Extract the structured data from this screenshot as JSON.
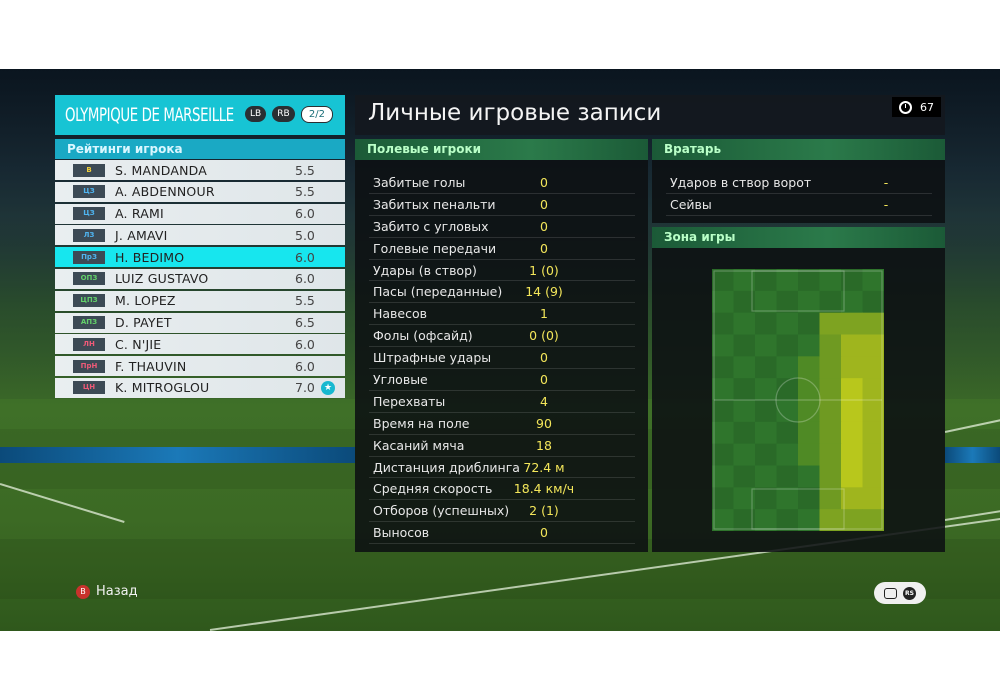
{
  "team": {
    "name": "OLYMPIQUE DE MARSEILLE",
    "btn_lb": "LB",
    "btn_rb": "RB",
    "page": "2/2"
  },
  "ratings_title": "Рейтинги игрока",
  "players": [
    {
      "pos": "В",
      "name": "S. MANDANDA",
      "rating": "5.5",
      "pos_color": "#f2d13a"
    },
    {
      "pos": "ЦЗ",
      "name": "A. ABDENNOUR",
      "rating": "5.5",
      "pos_color": "#4fb4f0"
    },
    {
      "pos": "ЦЗ",
      "name": "A. RAMI",
      "rating": "6.0",
      "pos_color": "#4fb4f0"
    },
    {
      "pos": "ЛЗ",
      "name": "J. AMAVI",
      "rating": "5.0",
      "pos_color": "#4fb4f0"
    },
    {
      "pos": "ПрЗ",
      "name": "H. BEDIMO",
      "rating": "6.0",
      "pos_color": "#4fb4f0"
    },
    {
      "pos": "ОПЗ",
      "name": "LUIZ GUSTAVO",
      "rating": "6.0",
      "pos_color": "#63d16a"
    },
    {
      "pos": "ЦПЗ",
      "name": "M. LOPEZ",
      "rating": "5.5",
      "pos_color": "#63d16a"
    },
    {
      "pos": "АПЗ",
      "name": "D. PAYET",
      "rating": "6.5",
      "pos_color": "#63d16a"
    },
    {
      "pos": "ЛН",
      "name": "C. N'JIE",
      "rating": "6.0",
      "pos_color": "#ef5a78"
    },
    {
      "pos": "ПрН",
      "name": "F. THAUVIN",
      "rating": "6.0",
      "pos_color": "#ef5a78"
    },
    {
      "pos": "ЦН",
      "name": "K. MITROGLOU",
      "rating": "7.0",
      "pos_color": "#ef5a78"
    }
  ],
  "records_title": "Личные игровые записи",
  "timer": "67",
  "field_title": "Полевые игроки",
  "field_stats": [
    {
      "label": "Забитые голы",
      "value": "0"
    },
    {
      "label": "Забитых пенальти",
      "value": "0"
    },
    {
      "label": "Забито с угловых",
      "value": "0"
    },
    {
      "label": "Голевые передачи",
      "value": "0"
    },
    {
      "label": "Удары (в створ)",
      "value": "1 (0)"
    },
    {
      "label": "Пасы (переданные)",
      "value": "14 (9)"
    },
    {
      "label": "Навесов",
      "value": "1"
    },
    {
      "label": "Фолы (офсайд)",
      "value": "0 (0)"
    },
    {
      "label": "Штрафные удары",
      "value": "0"
    },
    {
      "label": "Угловые",
      "value": "0"
    },
    {
      "label": "Перехваты",
      "value": "4"
    },
    {
      "label": "Время на поле",
      "value": "90"
    },
    {
      "label": "Касаний мяча",
      "value": "18"
    },
    {
      "label": "Дистанция дриблинга",
      "value": "72.4 м"
    },
    {
      "label": "Средняя скорость",
      "value": "18.4 км/ч"
    },
    {
      "label": "Отборов (успешных)",
      "value": "2 (1)"
    },
    {
      "label": "Выносов",
      "value": "0"
    }
  ],
  "gk_title": "Вратарь",
  "gk_stats": [
    {
      "label": "Ударов в створ ворот",
      "value": "-"
    },
    {
      "label": "Сейвы",
      "value": "-"
    }
  ],
  "zone_title": "Зона игры",
  "back_label": "Назад",
  "back_button": "B"
}
